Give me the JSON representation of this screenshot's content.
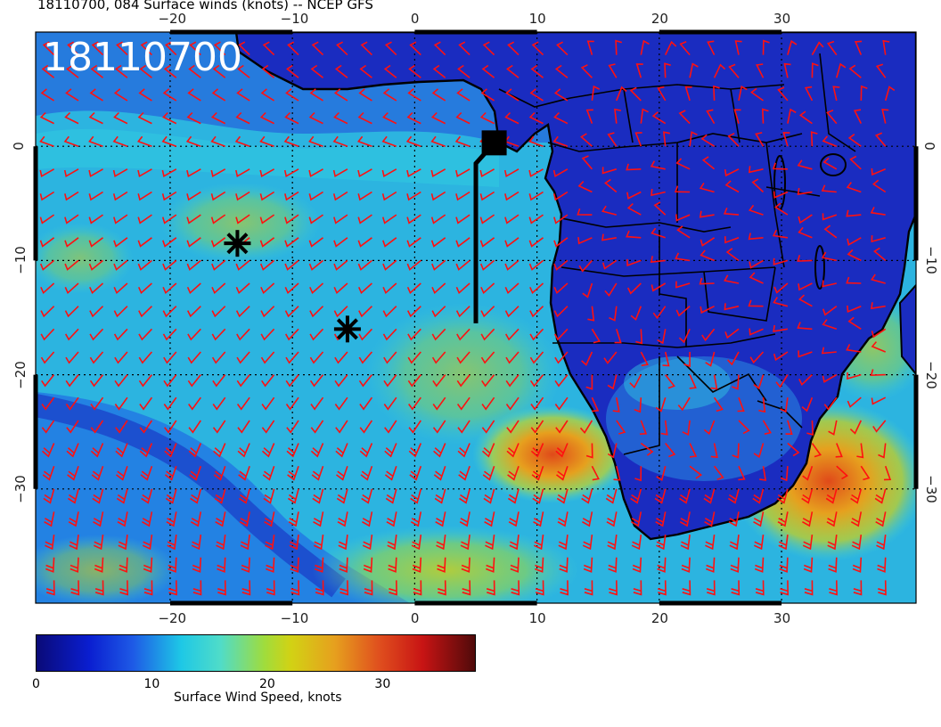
{
  "figure": {
    "title": "18110700, 084 Surface winds (knots) -- NCEP GFS",
    "timestamp_overlay": "18110700"
  },
  "map": {
    "lon_range": [
      -31,
      41
    ],
    "lat_range": [
      -40,
      10
    ],
    "lon_ticks": [
      {
        "value": -20,
        "label": "−20"
      },
      {
        "value": -10,
        "label": "−10"
      },
      {
        "value": 0,
        "label": "0"
      },
      {
        "value": 10,
        "label": "10"
      },
      {
        "value": 20,
        "label": "20"
      },
      {
        "value": 30,
        "label": "30"
      }
    ],
    "lat_ticks": [
      {
        "value": 0,
        "label": "0"
      },
      {
        "value": -10,
        "label": "−10"
      },
      {
        "value": -20,
        "label": "−20"
      },
      {
        "value": -30,
        "label": "−30"
      }
    ],
    "grid": "dotted",
    "markers": [
      {
        "type": "asterisk",
        "lon": -14.5,
        "lat": -8.5
      },
      {
        "type": "asterisk",
        "lon": -5.5,
        "lat": -16
      },
      {
        "type": "square",
        "lon": 6.5,
        "lat": 0.3
      }
    ],
    "track_line": {
      "points": [
        [
          6.5,
          0.3
        ],
        [
          5.0,
          -1.5
        ],
        [
          5.0,
          -15.5
        ]
      ]
    },
    "wind_barb_color": "#ff1010",
    "coastline_color": "#000000"
  },
  "colorbar": {
    "title": "Surface Wind Speed, knots",
    "ticks": [
      {
        "value": 0,
        "label": "0"
      },
      {
        "value": 10,
        "label": "10"
      },
      {
        "value": 20,
        "label": "20"
      },
      {
        "value": 30,
        "label": "30"
      }
    ],
    "range": [
      0,
      38
    ]
  }
}
